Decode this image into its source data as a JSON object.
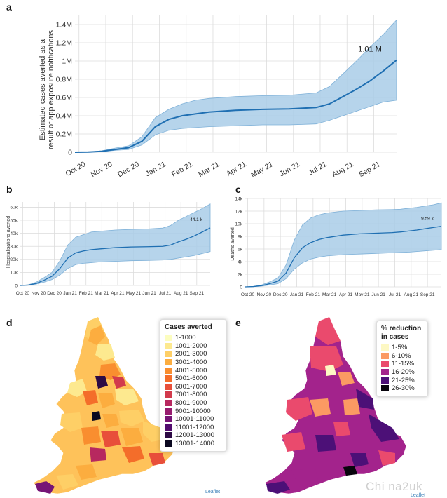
{
  "panels": {
    "a": "a",
    "b": "b",
    "c": "c",
    "d": "d",
    "e": "e"
  },
  "chart_data": [
    {
      "id": "a",
      "type": "area",
      "ylabel": "Estimated cases averted as a result of app exposure notifications",
      "ylabel_lines": [
        "Estimated cases averted as a",
        "result of app exposure notifications"
      ],
      "x_ticks": [
        "Oct 20",
        "Nov 20",
        "Dec 20",
        "Jan 21",
        "Feb 21",
        "Mar 21",
        "Apr 21",
        "May 21",
        "Jun 21",
        "Jul 21",
        "Aug 21",
        "Sep 21"
      ],
      "y_ticks": [
        "0",
        "0.2M",
        "0.4M",
        "0.6M",
        "0.8M",
        "1M",
        "1.2M",
        "1.4M"
      ],
      "ylim": [
        0,
        1.5
      ],
      "final_label": "1.01 M",
      "x": [
        0,
        0.5,
        1,
        1.5,
        2,
        2.5,
        3,
        3.5,
        4,
        4.5,
        5,
        6,
        7,
        8,
        9,
        9.5,
        10,
        10.5,
        11,
        11.5,
        12
      ],
      "mean": [
        0,
        0.002,
        0.01,
        0.03,
        0.05,
        0.12,
        0.28,
        0.36,
        0.4,
        0.42,
        0.44,
        0.46,
        0.47,
        0.475,
        0.49,
        0.53,
        0.61,
        0.69,
        0.78,
        0.89,
        1.01
      ],
      "lower": [
        0,
        0.001,
        0.006,
        0.02,
        0.03,
        0.08,
        0.19,
        0.24,
        0.26,
        0.27,
        0.28,
        0.29,
        0.3,
        0.3,
        0.31,
        0.35,
        0.4,
        0.45,
        0.5,
        0.55,
        0.57
      ],
      "upper": [
        0,
        0.003,
        0.015,
        0.045,
        0.07,
        0.17,
        0.38,
        0.47,
        0.53,
        0.57,
        0.59,
        0.61,
        0.62,
        0.625,
        0.65,
        0.72,
        0.86,
        1.0,
        1.15,
        1.29,
        1.45
      ]
    },
    {
      "id": "b",
      "type": "area",
      "ylabel": "Hospitalisations averted",
      "x_ticks": [
        "Oct 20",
        "Nov 20",
        "Dec 20",
        "Jan 21",
        "Feb 21",
        "Mar 21",
        "Apr 21",
        "May 21",
        "Jun 21",
        "Jul 21",
        "Aug 21",
        "Sep 21"
      ],
      "y_ticks": [
        "0",
        "10k",
        "20k",
        "30k",
        "40k",
        "50k",
        "60k"
      ],
      "ylim": [
        0,
        64
      ],
      "final_label": "44.1 k",
      "x": [
        0,
        0.5,
        1,
        1.5,
        2,
        2.5,
        3,
        3.5,
        4,
        4.5,
        5,
        6,
        7,
        8,
        9,
        9.5,
        10,
        10.5,
        11,
        11.5,
        12
      ],
      "mean": [
        0,
        0.3,
        1.5,
        4,
        7,
        13,
        21,
        25,
        26.5,
        27.5,
        28,
        29,
        29.5,
        29.7,
        30,
        31,
        33.5,
        35.5,
        38,
        41,
        44.1
      ],
      "lower": [
        0,
        0.2,
        1,
        2.5,
        4.5,
        8,
        13,
        16,
        17,
        17.5,
        18,
        18.5,
        19,
        19.2,
        19.5,
        20,
        21,
        22,
        23,
        24.5,
        26
      ],
      "upper": [
        0,
        0.5,
        2.5,
        6,
        10,
        19,
        31,
        37,
        39,
        41,
        41.5,
        42.5,
        43,
        43.3,
        44,
        46,
        50,
        53,
        56,
        59,
        62.5
      ]
    },
    {
      "id": "c",
      "type": "area",
      "ylabel": "Deaths averted",
      "x_ticks": [
        "Oct 20",
        "Nov 20",
        "Dec 20",
        "Jan 21",
        "Feb 21",
        "Mar 21",
        "Apr 21",
        "May 21",
        "Jun 21",
        "Jul 21",
        "Aug 21",
        "Sep 21"
      ],
      "y_ticks": [
        "0",
        "2k",
        "4k",
        "6k",
        "8k",
        "10k",
        "12k",
        "14k"
      ],
      "ylim": [
        0,
        14
      ],
      "final_label": "9.59 k",
      "x": [
        0,
        0.5,
        1,
        1.5,
        2,
        2.5,
        3,
        3.5,
        4,
        4.5,
        5,
        6,
        7,
        8,
        9,
        9.5,
        10,
        10.5,
        11,
        11.5,
        12
      ],
      "mean": [
        0,
        0.05,
        0.2,
        0.5,
        0.9,
        2.2,
        4.6,
        6.2,
        7.0,
        7.5,
        7.8,
        8.2,
        8.4,
        8.5,
        8.6,
        8.7,
        8.85,
        9.0,
        9.2,
        9.4,
        9.59
      ],
      "lower": [
        0,
        0.03,
        0.12,
        0.3,
        0.5,
        1.3,
        2.8,
        3.8,
        4.4,
        4.7,
        4.9,
        5.1,
        5.2,
        5.3,
        5.4,
        5.45,
        5.5,
        5.6,
        5.7,
        5.8,
        5.9
      ],
      "upper": [
        0,
        0.08,
        0.3,
        0.8,
        1.4,
        3.5,
        7.4,
        9.8,
        10.9,
        11.4,
        11.7,
        12.0,
        12.1,
        12.2,
        12.25,
        12.3,
        12.45,
        12.6,
        12.8,
        13.0,
        13.3
      ]
    }
  ],
  "maps": {
    "d": {
      "legend_title": "Cases averted",
      "attribution": "Leaflet",
      "items": [
        {
          "label": "1-1000",
          "color": "#fcfdbf"
        },
        {
          "label": "1001-2000",
          "color": "#fde98f"
        },
        {
          "label": "2001-3000",
          "color": "#fecf66"
        },
        {
          "label": "3001-4000",
          "color": "#fcad3f"
        },
        {
          "label": "4001-5000",
          "color": "#f98e2f"
        },
        {
          "label": "5001-6000",
          "color": "#f46d2a"
        },
        {
          "label": "6001-7000",
          "color": "#e84f3a"
        },
        {
          "label": "7001-8000",
          "color": "#d23a4c"
        },
        {
          "label": "8001-9000",
          "color": "#b7285f"
        },
        {
          "label": "9001-10000",
          "color": "#971c6f"
        },
        {
          "label": "10001-11000",
          "color": "#761476"
        },
        {
          "label": "11001-12000",
          "color": "#520c6e"
        },
        {
          "label": "12001-13000",
          "color": "#2d0a45"
        },
        {
          "label": "13001-14000",
          "color": "#0b0820"
        }
      ]
    },
    "e": {
      "legend_title_lines": [
        "% reduction",
        "in cases"
      ],
      "attribution": "Leaflet",
      "items": [
        {
          "label": "1-5%",
          "color": "#fdf8c4"
        },
        {
          "label": "6-10%",
          "color": "#fb9a63"
        },
        {
          "label": "11-15%",
          "color": "#ea4a6d"
        },
        {
          "label": "16-20%",
          "color": "#a3238c"
        },
        {
          "label": "21-25%",
          "color": "#4c1077"
        },
        {
          "label": "26-30%",
          "color": "#08050d"
        }
      ]
    }
  },
  "watermark": "Chi na2uk",
  "colors": {
    "band": "#a9cce8",
    "line": "#1f6fb2",
    "grid": "#dcdcdc"
  }
}
